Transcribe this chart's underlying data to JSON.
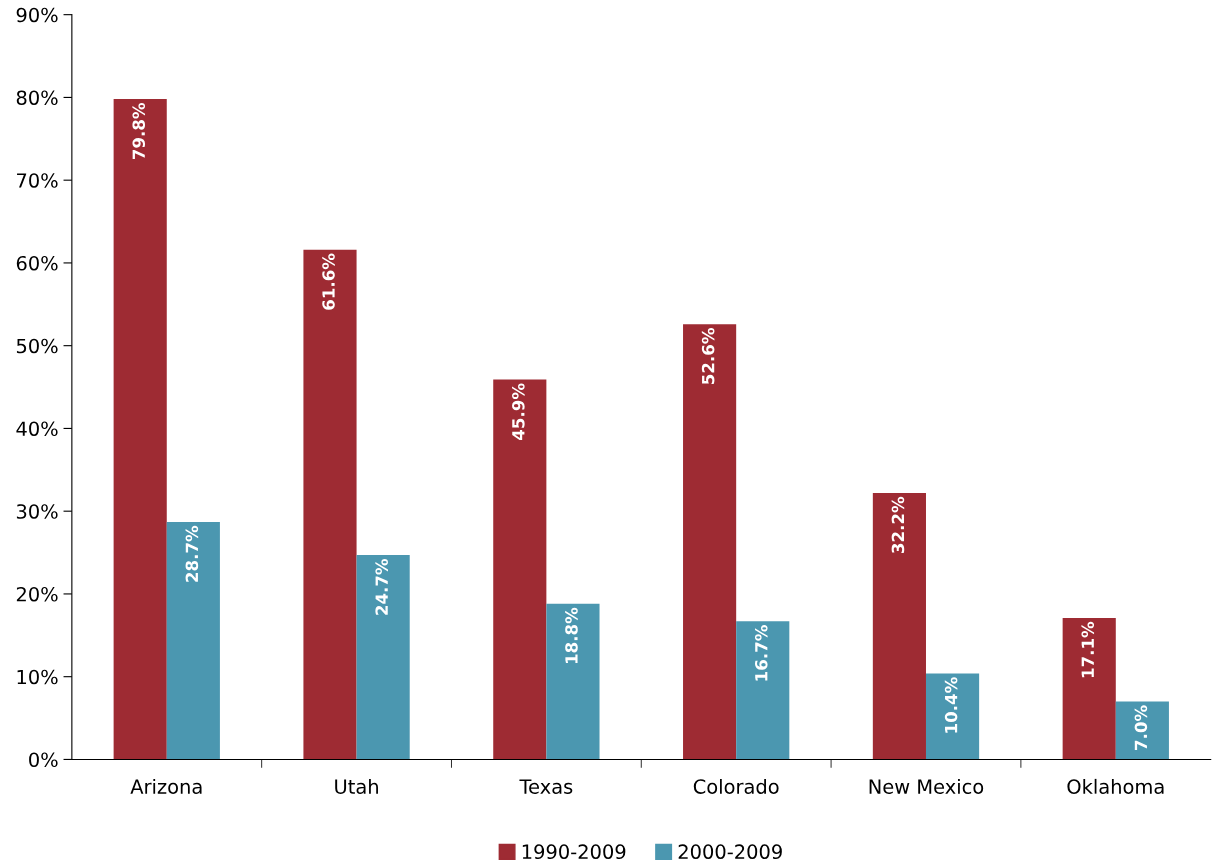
{
  "chart_data": {
    "type": "bar",
    "categories": [
      "Arizona",
      "Utah",
      "Texas",
      "Colorado",
      "New Mexico",
      "Oklahoma"
    ],
    "series": [
      {
        "name": "1990-2009",
        "color": "#9e2b33",
        "values": [
          79.8,
          61.6,
          45.9,
          52.6,
          32.2,
          17.1
        ],
        "value_labels": [
          "79.8%",
          "61.6%",
          "45.9%",
          "52.6%",
          "32.2%",
          "17.1%"
        ]
      },
      {
        "name": "2000-2009",
        "color": "#4b97b0",
        "values": [
          28.7,
          24.7,
          18.8,
          16.7,
          10.4,
          7.0
        ],
        "value_labels": [
          "28.7%",
          "24.7%",
          "18.8%",
          "16.7%",
          "10.4%",
          "7.0%"
        ]
      }
    ],
    "ylim": [
      0,
      90
    ],
    "yticks": [
      {
        "value": 0,
        "label": "0%"
      },
      {
        "value": 10,
        "label": "10%"
      },
      {
        "value": 20,
        "label": "20%"
      },
      {
        "value": 30,
        "label": "30%"
      },
      {
        "value": 40,
        "label": "40%"
      },
      {
        "value": 50,
        "label": "50%"
      },
      {
        "value": 60,
        "label": "60%"
      },
      {
        "value": 70,
        "label": "70%"
      },
      {
        "value": 80,
        "label": "80%"
      },
      {
        "value": 90,
        "label": "90%"
      }
    ],
    "grid": false,
    "legend": "bottom"
  }
}
